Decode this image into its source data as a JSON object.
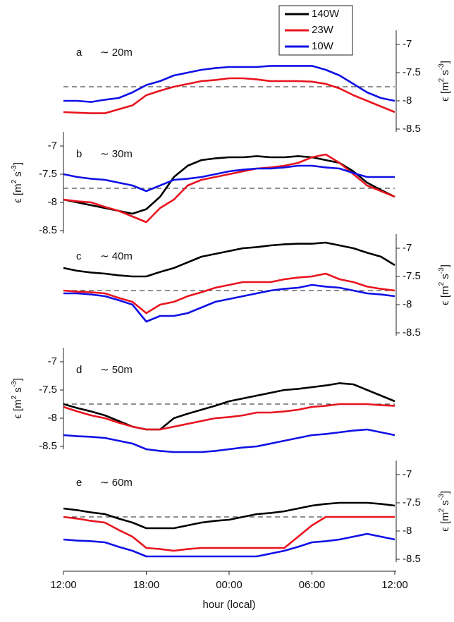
{
  "chart_data": [
    {
      "type": "line",
      "label": "a",
      "annotation": "∼ 20m",
      "yaxis": "right",
      "legend": "top-right",
      "ylabel": [
        "ϵ [m",
        "2",
        " s",
        "-3",
        "]"
      ],
      "hline": -7.75,
      "x": [
        0,
        1,
        2,
        3,
        4,
        5,
        6,
        7,
        8,
        9,
        10,
        11,
        12,
        13,
        14,
        15,
        16,
        17,
        18,
        19,
        20,
        21,
        22,
        23,
        24
      ],
      "xlim": [
        0,
        24
      ],
      "ylim": [
        -8.55,
        -6.75
      ],
      "yticks": [
        -8.5,
        -8,
        -7.5,
        -7
      ],
      "series": [
        {
          "name": "140W",
          "color": "#000000",
          "values": [
            null,
            null,
            null,
            null,
            null,
            null,
            null,
            null,
            null,
            null,
            null,
            null,
            null,
            null,
            null,
            null,
            null,
            null,
            null,
            null,
            null,
            null,
            null,
            null,
            null
          ]
        },
        {
          "name": "23W",
          "color": "#e8141e",
          "values": [
            -8.2,
            -8.21,
            -8.22,
            -8.22,
            -8.15,
            -8.08,
            -7.9,
            -7.82,
            -7.75,
            -7.7,
            -7.65,
            -7.63,
            -7.6,
            -7.6,
            -7.62,
            -7.65,
            -7.65,
            -7.65,
            -7.66,
            -7.7,
            -7.78,
            -7.9,
            -8.0,
            -8.1,
            -8.2
          ]
        },
        {
          "name": "10W",
          "color": "#1010e6",
          "values": [
            -8.0,
            -8.0,
            -8.02,
            -7.98,
            -7.95,
            -7.85,
            -7.72,
            -7.65,
            -7.55,
            -7.5,
            -7.45,
            -7.42,
            -7.4,
            -7.4,
            -7.4,
            -7.38,
            -7.38,
            -7.38,
            -7.38,
            -7.45,
            -7.55,
            -7.7,
            -7.85,
            -7.95,
            -8.0
          ]
        }
      ]
    },
    {
      "type": "line",
      "label": "b",
      "annotation": "∼ 30m",
      "yaxis": "left",
      "ylabel": [
        "ϵ [m",
        "2",
        " s",
        "-3",
        "]"
      ],
      "hline": -7.75,
      "x": [
        0,
        1,
        2,
        3,
        4,
        5,
        6,
        7,
        8,
        9,
        10,
        11,
        12,
        13,
        14,
        15,
        16,
        17,
        18,
        19,
        20,
        21,
        22,
        23,
        24
      ],
      "xlim": [
        0,
        24
      ],
      "ylim": [
        -8.55,
        -6.75
      ],
      "yticks": [
        -8.5,
        -8,
        -7.5,
        -7
      ],
      "series": [
        {
          "color": "#000000",
          "values": [
            -7.95,
            -8.0,
            -8.05,
            -8.1,
            -8.15,
            -8.2,
            -8.12,
            -7.9,
            -7.55,
            -7.35,
            -7.25,
            -7.22,
            -7.2,
            -7.2,
            -7.18,
            -7.2,
            -7.2,
            -7.18,
            -7.2,
            -7.25,
            -7.3,
            -7.45,
            -7.65,
            -7.78,
            -7.9
          ]
        },
        {
          "color": "#e8141e",
          "values": [
            -7.95,
            -7.98,
            -8.0,
            -8.08,
            -8.15,
            -8.25,
            -8.35,
            -8.1,
            -7.95,
            -7.7,
            -7.6,
            -7.55,
            -7.5,
            -7.45,
            -7.4,
            -7.38,
            -7.35,
            -7.3,
            -7.2,
            -7.15,
            -7.3,
            -7.5,
            -7.7,
            -7.8,
            -7.9
          ]
        },
        {
          "color": "#1010e6",
          "values": [
            -7.5,
            -7.55,
            -7.58,
            -7.6,
            -7.65,
            -7.7,
            -7.8,
            -7.7,
            -7.6,
            -7.58,
            -7.55,
            -7.5,
            -7.45,
            -7.42,
            -7.4,
            -7.4,
            -7.38,
            -7.35,
            -7.35,
            -7.38,
            -7.4,
            -7.48,
            -7.55,
            -7.55,
            -7.55
          ]
        }
      ]
    },
    {
      "type": "line",
      "label": "c",
      "annotation": "∼ 40m",
      "yaxis": "right",
      "ylabel": [
        "ϵ [m",
        "2",
        " s",
        "-3",
        "]"
      ],
      "hline": -7.75,
      "x": [
        0,
        1,
        2,
        3,
        4,
        5,
        6,
        7,
        8,
        9,
        10,
        11,
        12,
        13,
        14,
        15,
        16,
        17,
        18,
        19,
        20,
        21,
        22,
        23,
        24
      ],
      "xlim": [
        0,
        24
      ],
      "ylim": [
        -8.55,
        -6.75
      ],
      "yticks": [
        -8.5,
        -8,
        -7.5,
        -7
      ],
      "series": [
        {
          "color": "#000000",
          "values": [
            -7.35,
            -7.4,
            -7.43,
            -7.45,
            -7.48,
            -7.5,
            -7.5,
            -7.42,
            -7.35,
            -7.25,
            -7.15,
            -7.1,
            -7.05,
            -7.0,
            -6.98,
            -6.95,
            -6.93,
            -6.92,
            -6.92,
            -6.9,
            -6.95,
            -7.0,
            -7.08,
            -7.15,
            -7.3
          ]
        },
        {
          "color": "#e8141e",
          "values": [
            -7.75,
            -7.77,
            -7.78,
            -7.8,
            -7.88,
            -7.95,
            -8.15,
            -8.0,
            -7.95,
            -7.85,
            -7.78,
            -7.7,
            -7.65,
            -7.6,
            -7.6,
            -7.6,
            -7.55,
            -7.52,
            -7.5,
            -7.45,
            -7.55,
            -7.6,
            -7.68,
            -7.72,
            -7.75
          ]
        },
        {
          "color": "#1010e6",
          "values": [
            -7.8,
            -7.8,
            -7.82,
            -7.85,
            -7.92,
            -8.0,
            -8.3,
            -8.2,
            -8.2,
            -8.15,
            -8.05,
            -7.95,
            -7.9,
            -7.85,
            -7.8,
            -7.75,
            -7.72,
            -7.7,
            -7.65,
            -7.68,
            -7.7,
            -7.75,
            -7.8,
            -7.82,
            -7.85
          ]
        }
      ]
    },
    {
      "type": "line",
      "label": "d",
      "annotation": "∼ 50m",
      "yaxis": "left",
      "ylabel": [
        "ϵ [m",
        "2",
        " s",
        "-3",
        "]"
      ],
      "hline": -7.75,
      "x": [
        0,
        1,
        2,
        3,
        4,
        5,
        6,
        7,
        8,
        9,
        10,
        11,
        12,
        13,
        14,
        15,
        16,
        17,
        18,
        19,
        20,
        21,
        22,
        23,
        24
      ],
      "xlim": [
        0,
        24
      ],
      "ylim": [
        -8.55,
        -6.75
      ],
      "yticks": [
        -8.5,
        -8,
        -7.5,
        -7
      ],
      "series": [
        {
          "color": "#000000",
          "values": [
            -7.75,
            -7.82,
            -7.88,
            -7.95,
            -8.05,
            -8.15,
            -8.2,
            -8.2,
            -8.0,
            -7.92,
            -7.85,
            -7.78,
            -7.7,
            -7.65,
            -7.6,
            -7.55,
            -7.5,
            -7.48,
            -7.45,
            -7.42,
            -7.38,
            -7.4,
            -7.5,
            -7.6,
            -7.7
          ]
        },
        {
          "color": "#e8141e",
          "values": [
            -7.8,
            -7.88,
            -7.95,
            -8.0,
            -8.08,
            -8.15,
            -8.2,
            -8.2,
            -8.15,
            -8.1,
            -8.05,
            -8.0,
            -7.98,
            -7.95,
            -7.9,
            -7.9,
            -7.88,
            -7.85,
            -7.8,
            -7.78,
            -7.75,
            -7.75,
            -7.75,
            -7.77,
            -7.78
          ]
        },
        {
          "color": "#1010e6",
          "values": [
            -8.3,
            -8.32,
            -8.33,
            -8.35,
            -8.4,
            -8.45,
            -8.55,
            -8.58,
            -8.6,
            -8.6,
            -8.6,
            -8.58,
            -8.55,
            -8.52,
            -8.5,
            -8.45,
            -8.4,
            -8.35,
            -8.3,
            -8.28,
            -8.25,
            -8.22,
            -8.2,
            -8.25,
            -8.3
          ]
        }
      ]
    },
    {
      "type": "line",
      "label": "e",
      "annotation": "∼ 60m",
      "yaxis": "right",
      "ylabel": [
        "ϵ [m",
        "2",
        " s",
        "-3",
        "]"
      ],
      "hline": -7.75,
      "xlabel": "hour (local)",
      "x": [
        0,
        1,
        2,
        3,
        4,
        5,
        6,
        7,
        8,
        9,
        10,
        11,
        12,
        13,
        14,
        15,
        16,
        17,
        18,
        19,
        20,
        21,
        22,
        23,
        24
      ],
      "xlim": [
        0,
        24
      ],
      "ylim": [
        -8.55,
        -6.75
      ],
      "yticks": [
        -8.5,
        -8,
        -7.5,
        -7
      ],
      "xticks": [
        {
          "value": 0,
          "label": "12:00"
        },
        {
          "value": 6,
          "label": "18:00"
        },
        {
          "value": 12,
          "label": "00:00"
        },
        {
          "value": 18,
          "label": "06:00"
        },
        {
          "value": 24,
          "label": "12:00"
        }
      ],
      "series": [
        {
          "color": "#000000",
          "values": [
            -7.6,
            -7.63,
            -7.67,
            -7.7,
            -7.78,
            -7.85,
            -7.95,
            -7.95,
            -7.95,
            -7.9,
            -7.85,
            -7.82,
            -7.8,
            -7.75,
            -7.7,
            -7.68,
            -7.65,
            -7.6,
            -7.55,
            -7.52,
            -7.5,
            -7.5,
            -7.5,
            -7.52,
            -7.55
          ]
        },
        {
          "color": "#e8141e",
          "values": [
            -7.75,
            -7.78,
            -7.82,
            -7.85,
            -7.98,
            -8.1,
            -8.3,
            -8.32,
            -8.35,
            -8.32,
            -8.3,
            -8.3,
            -8.3,
            -8.3,
            -8.3,
            -8.3,
            -8.3,
            -8.1,
            -7.9,
            -7.75,
            -7.75,
            -7.75,
            -7.75,
            -7.75,
            -7.75
          ]
        },
        {
          "color": "#1010e6",
          "values": [
            -8.15,
            -8.17,
            -8.18,
            -8.2,
            -8.28,
            -8.35,
            -8.45,
            -8.45,
            -8.45,
            -8.45,
            -8.45,
            -8.45,
            -8.45,
            -8.45,
            -8.45,
            -8.4,
            -8.35,
            -8.28,
            -8.2,
            -8.18,
            -8.15,
            -8.1,
            -8.05,
            -8.1,
            -8.15
          ]
        }
      ]
    }
  ]
}
